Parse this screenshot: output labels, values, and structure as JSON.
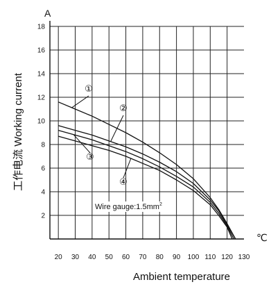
{
  "chart_data": {
    "type": "line",
    "y_unit": "A",
    "x_unit": "℃",
    "ylabel": "工作电流  Working current",
    "xlabel": "Ambient temperature",
    "annotation": {
      "text": "Wire gauge:1.5mm",
      "sup": "2"
    },
    "xlim": [
      15,
      130
    ],
    "ylim": [
      0,
      18
    ],
    "x_ticks": [
      20,
      30,
      40,
      50,
      60,
      70,
      80,
      90,
      100,
      110,
      120,
      130
    ],
    "y_ticks": [
      2,
      4,
      6,
      8,
      10,
      12,
      14,
      16,
      18
    ],
    "grid": true,
    "series": [
      {
        "name": "①",
        "x": [
          20,
          30,
          40,
          50,
          60,
          70,
          80,
          90,
          100,
          110,
          115,
          120,
          125
        ],
        "y": [
          11.6,
          11.0,
          10.4,
          9.7,
          9.0,
          8.2,
          7.3,
          6.3,
          5.1,
          3.5,
          2.5,
          1.3,
          0
        ]
      },
      {
        "name": "②",
        "x": [
          20,
          30,
          40,
          50,
          60,
          70,
          80,
          90,
          100,
          110,
          115,
          120,
          125
        ],
        "y": [
          9.6,
          9.2,
          8.8,
          8.3,
          7.8,
          7.2,
          6.5,
          5.7,
          4.7,
          3.3,
          2.4,
          1.2,
          0
        ]
      },
      {
        "name": "③",
        "x": [
          20,
          30,
          40,
          50,
          60,
          70,
          80,
          90,
          100,
          110,
          115,
          120,
          124
        ],
        "y": [
          9.2,
          8.8,
          8.4,
          7.9,
          7.4,
          6.8,
          6.1,
          5.3,
          4.4,
          3.1,
          2.2,
          1.1,
          0
        ]
      },
      {
        "name": "④",
        "x": [
          20,
          30,
          40,
          50,
          60,
          70,
          80,
          90,
          100,
          110,
          115,
          120,
          123
        ],
        "y": [
          8.7,
          8.3,
          7.9,
          7.5,
          7.0,
          6.4,
          5.8,
          5.0,
          4.1,
          2.9,
          2.0,
          1.0,
          0
        ]
      }
    ]
  }
}
